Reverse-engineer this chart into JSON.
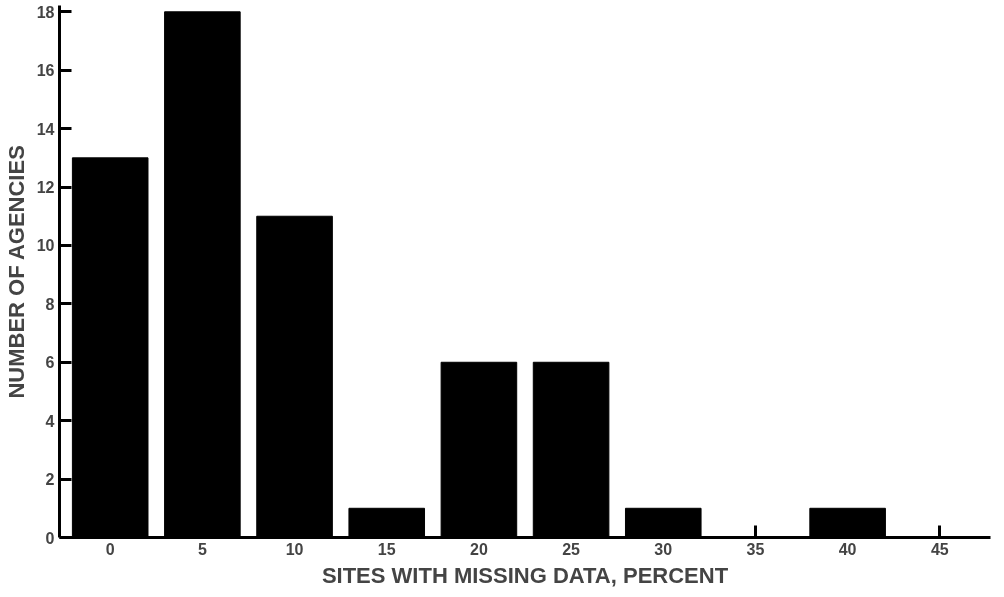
{
  "chart_data": {
    "type": "bar",
    "xlabel": "SITES WITH MISSING DATA, PERCENT",
    "ylabel": "NUMBER OF AGENCIES",
    "categories": [
      "0",
      "5",
      "10",
      "15",
      "20",
      "25",
      "30",
      "35",
      "40",
      "45"
    ],
    "values": [
      13,
      18,
      11,
      1,
      6,
      6,
      1,
      0,
      1,
      0
    ],
    "color": "#000000",
    "ylim": [
      0,
      18
    ],
    "yticks": [
      0,
      2,
      4,
      6,
      8,
      10,
      12,
      14,
      16,
      18
    ],
    "grid": false
  }
}
